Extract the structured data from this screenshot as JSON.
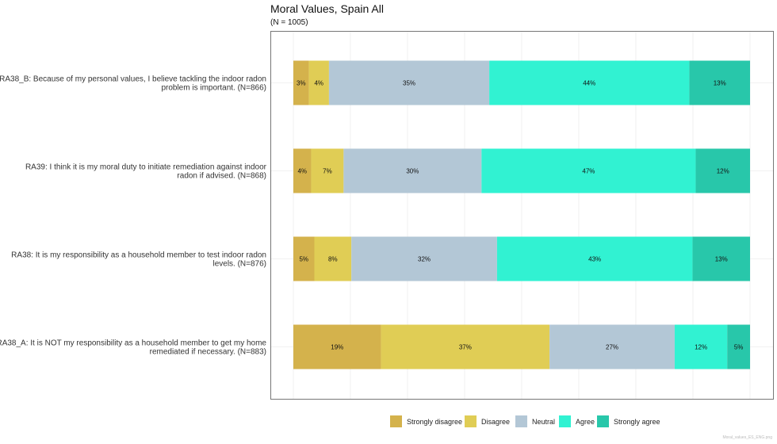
{
  "chart_data": {
    "type": "bar",
    "orientation": "horizontal",
    "stacked": true,
    "title": "Moral Values, Spain All",
    "subtitle": "(N = 1005)",
    "categories": [
      [
        "RA38_B: Because of my personal values, I believe tackling the indoor radon",
        "problem is important. (N=866)"
      ],
      [
        "RA39: I think it is my moral duty to initiate remediation against indoor",
        "radon if advised. (N=868)"
      ],
      [
        "RA38: It is my responsibility as a household member to test indoor radon",
        "levels. (N=876)"
      ],
      [
        "RA38_A: It is NOT my responsibility as a household member to get my home",
        "remediated if necessary. (N=883)"
      ]
    ],
    "series": [
      {
        "name": "Strongly disagree",
        "color": "#d4b24c",
        "values": [
          3.4,
          3.9,
          4.6,
          19.2
        ]
      },
      {
        "name": "Disagree",
        "color": "#e0cd55",
        "values": [
          4.4,
          7.1,
          8.1,
          36.9
        ]
      },
      {
        "name": "Neutral",
        "color": "#b3c7d6",
        "values": [
          35.1,
          30.2,
          31.9,
          27.4
        ]
      },
      {
        "name": "Agree",
        "color": "#31f2d2",
        "values": [
          43.8,
          46.9,
          42.8,
          11.5
        ]
      },
      {
        "name": "Strongly agree",
        "color": "#28c7aa",
        "values": [
          13.3,
          11.9,
          12.6,
          5.0
        ]
      }
    ],
    "data_labels": [
      [
        "3%",
        "4%",
        "35%",
        "44%",
        "13%"
      ],
      [
        "4%",
        "7%",
        "30%",
        "47%",
        "12%"
      ],
      [
        "5%",
        "8%",
        "32%",
        "43%",
        "13%"
      ],
      [
        "19%",
        "37%",
        "27%",
        "12%",
        "5%"
      ]
    ],
    "xlim": [
      0,
      100
    ],
    "grid": true,
    "legend_position": "bottom",
    "footer": "Moral_values_ES_ENG.png"
  }
}
